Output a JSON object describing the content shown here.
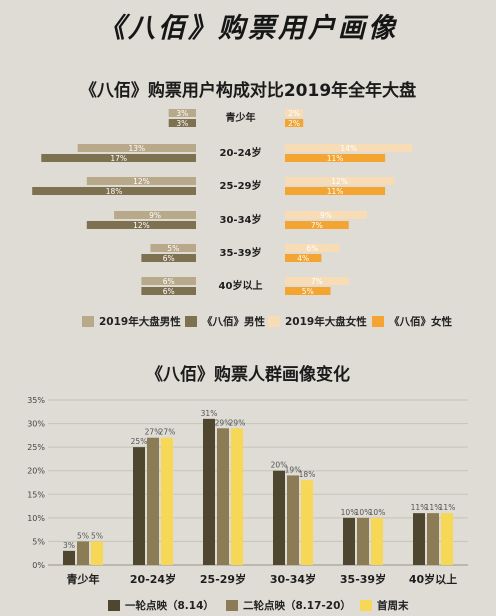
{
  "title": "《八佰》购票用户画像",
  "colors": {
    "bg": "#dedcd5",
    "male_2019": "#b7a98a",
    "male_babai": "#7e7150",
    "female_2019": "#f8dcb6",
    "female_babai": "#f4a430",
    "wave1": "#4f4630",
    "wave2": "#8b7c56",
    "first_week": "#f6d756"
  },
  "chart_data": [
    {
      "type": "bar",
      "orientation": "horizontal-diverging",
      "title": "《八佰》购票用户构成对比2019年全年大盘",
      "categories": [
        "青少年",
        "20-24岁",
        "25-29岁",
        "30-34岁",
        "35-39岁",
        "40岁以上"
      ],
      "series": [
        {
          "name": "2019年大盘男性",
          "side": "left",
          "values": [
            3,
            13,
            12,
            9,
            5,
            6
          ],
          "labels": [
            "3%",
            "13%",
            "12%",
            "9%",
            "5%",
            "6%"
          ]
        },
        {
          "name": "《八佰》男性",
          "side": "left",
          "values": [
            3,
            17,
            18,
            12,
            6,
            6
          ],
          "labels": [
            "3%",
            "17%",
            "18%",
            "12%",
            "6%",
            "6%"
          ]
        },
        {
          "name": "2019年大盘女性",
          "side": "right",
          "values": [
            2,
            14,
            12,
            9,
            6,
            7
          ],
          "labels": [
            "2%",
            "14%",
            "12%",
            "9%",
            "6%",
            "7%"
          ]
        },
        {
          "name": "《八佰》女性",
          "side": "right",
          "values": [
            2,
            11,
            11,
            7,
            4,
            5
          ],
          "labels": [
            "2%",
            "11%",
            "11%",
            "7%",
            "4%",
            "5%"
          ]
        }
      ],
      "legend": [
        "2019年大盘男性",
        "《八佰》男性",
        "2019年大盘女性",
        "《八佰》女性"
      ],
      "legend_position": "bottom"
    },
    {
      "type": "bar",
      "title": "《八佰》购票人群画像变化",
      "categories": [
        "青少年",
        "20-24岁",
        "25-29岁",
        "30-34岁",
        "35-39岁",
        "40岁以上"
      ],
      "series": [
        {
          "name": "一轮点映（8.14）",
          "values": [
            3,
            25,
            31,
            20,
            10,
            11
          ],
          "labels": [
            "3%",
            "25%",
            "31%",
            "20%",
            "10%",
            "11%"
          ]
        },
        {
          "name": "二轮点映（8.17-20）",
          "values": [
            5,
            27,
            29,
            19,
            10,
            11
          ],
          "labels": [
            "5%",
            "27%",
            "29%",
            "19%",
            "10%",
            "11%"
          ]
        },
        {
          "name": "首周末",
          "values": [
            5,
            27,
            29,
            18,
            10,
            11
          ],
          "labels": [
            "5%",
            "27%",
            "29%",
            "18%",
            "10%",
            "11%"
          ]
        }
      ],
      "yticks": [
        "0%",
        "5%",
        "10%",
        "15%",
        "20%",
        "25%",
        "30%",
        "35%"
      ],
      "ylim": [
        0,
        35
      ],
      "grid": true,
      "legend": [
        "一轮点映（8.14）",
        "二轮点映（8.17-20）",
        "首周末"
      ],
      "legend_position": "bottom"
    }
  ]
}
